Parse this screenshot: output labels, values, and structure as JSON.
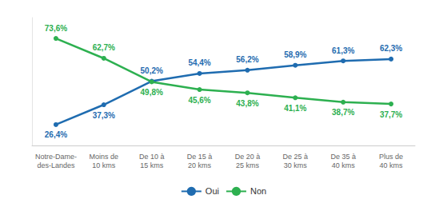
{
  "chart_data": {
    "type": "line",
    "categories": [
      "Notre-Dame-\ndes-Landes",
      "Moins de\n10 kms",
      "De 10 à\n15 kms",
      "De 15 à\n20 kms",
      "De 20 à\n25 kms",
      "De 25 à\n30 kms",
      "De 35 à\n40 kms",
      "Plus de\n40 kms"
    ],
    "series": [
      {
        "name": "Oui",
        "color": "#1f6cb0",
        "marker": "circle",
        "values": [
          26.4,
          37.3,
          50.2,
          54.4,
          56.2,
          58.9,
          61.3,
          62.3
        ],
        "value_labels": [
          "26,4%",
          "37,3%",
          "50,2%",
          "54,4%",
          "56,2%",
          "58,9%",
          "61,3%",
          "62,3%"
        ]
      },
      {
        "name": "Non",
        "color": "#2db050",
        "marker": "circle",
        "values": [
          73.6,
          62.7,
          49.8,
          45.6,
          43.8,
          41.1,
          38.7,
          37.7
        ],
        "value_labels": [
          "73,6%",
          "62,7%",
          "49,8%",
          "45,6%",
          "43,8%",
          "41,1%",
          "38,7%",
          "37,7%"
        ]
      }
    ],
    "ylim": [
      15,
      85
    ],
    "data_labels": true,
    "tick_labels": "x",
    "grid": false,
    "legend": "bottom"
  }
}
